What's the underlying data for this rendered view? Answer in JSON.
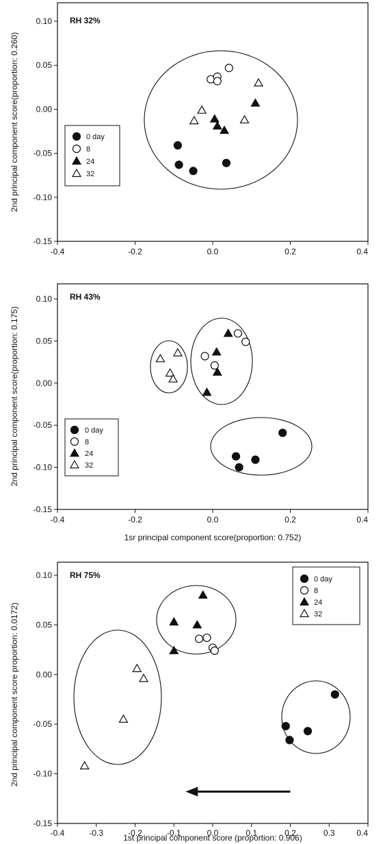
{
  "chart_data": [
    {
      "type": "scatter",
      "title": "RH 32%",
      "xlabel": "",
      "ylabel": "2nd principal component score(proportion: 0.260)",
      "xlim": [
        -0.4,
        0.4
      ],
      "ylim": [
        -0.15,
        0.1
      ],
      "x_ticks": [
        "-0.4",
        "-0.2",
        "0.0",
        "0.2",
        "0.4"
      ],
      "y_ticks": [
        "0.10",
        "0.05",
        "0.00",
        "-0.05",
        "-0.10",
        "-0.15"
      ],
      "legend_position": "left",
      "legend": [
        "0 day",
        "8",
        "24",
        "32"
      ],
      "series": [
        {
          "name": "0 day",
          "marker": "filled-circle",
          "points": [
            [
              -0.09,
              -0.041
            ],
            [
              -0.087,
              -0.063
            ],
            [
              -0.05,
              -0.07
            ],
            [
              0.035,
              -0.061
            ]
          ]
        },
        {
          "name": "8",
          "marker": "open-circle",
          "points": [
            [
              -0.005,
              0.034
            ],
            [
              0.012,
              0.037
            ],
            [
              0.012,
              0.032
            ],
            [
              0.042,
              0.047
            ]
          ]
        },
        {
          "name": "24",
          "marker": "filled-triangle",
          "points": [
            [
              0.005,
              -0.011
            ],
            [
              0.012,
              -0.019
            ],
            [
              0.03,
              -0.024
            ],
            [
              0.11,
              0.007
            ]
          ]
        },
        {
          "name": "32",
          "marker": "open-triangle",
          "points": [
            [
              -0.048,
              -0.013
            ],
            [
              -0.028,
              -0.001
            ],
            [
              0.082,
              -0.012
            ],
            [
              0.118,
              0.03
            ]
          ]
        }
      ]
    },
    {
      "type": "scatter",
      "title": "RH 43%",
      "xlabel": "1sr principal component score(proportion: 0.752)",
      "ylabel": "2nd principal component score(proportion: 0.175)",
      "xlim": [
        -0.4,
        0.4
      ],
      "ylim": [
        -0.15,
        0.1
      ],
      "x_ticks": [
        "-0.4",
        "-0.2",
        "0.0",
        "0.2",
        "0.4"
      ],
      "y_ticks": [
        "0.10",
        "0.05",
        "0.00",
        "-0.05",
        "-0.10",
        "-0.15"
      ],
      "legend_position": "bottom-left",
      "legend": [
        "0 day",
        "8",
        "24",
        "32"
      ],
      "series": [
        {
          "name": "0 day",
          "marker": "filled-circle",
          "points": [
            [
              0.06,
              -0.087
            ],
            [
              0.068,
              -0.1
            ],
            [
              0.11,
              -0.091
            ],
            [
              0.18,
              -0.059
            ]
          ]
        },
        {
          "name": "8",
          "marker": "open-circle",
          "points": [
            [
              -0.02,
              0.032
            ],
            [
              0.005,
              0.021
            ],
            [
              0.065,
              0.059
            ],
            [
              0.085,
              0.049
            ]
          ]
        },
        {
          "name": "24",
          "marker": "filled-triangle",
          "points": [
            [
              -0.015,
              -0.011
            ],
            [
              0.01,
              0.037
            ],
            [
              0.012,
              0.013
            ],
            [
              0.04,
              0.059
            ]
          ]
        },
        {
          "name": "32",
          "marker": "open-triangle",
          "points": [
            [
              -0.135,
              0.029
            ],
            [
              -0.11,
              0.012
            ],
            [
              -0.102,
              0.005
            ],
            [
              -0.09,
              0.036
            ]
          ]
        }
      ]
    },
    {
      "type": "scatter",
      "title": "RH 75%",
      "xlabel": "1st principal component score (proportion: 0.906)",
      "ylabel": "2nd principal component score proportion: 0.0172)",
      "xlim": [
        -0.4,
        0.4
      ],
      "ylim": [
        -0.15,
        0.1
      ],
      "x_ticks": [
        "-0.4",
        "-0.3",
        "-0.2",
        "-0.1",
        "0.0",
        "0.1",
        "0.2",
        "0.3",
        "0.4"
      ],
      "y_ticks": [
        "0.10",
        "0.05",
        "0.00",
        "-0.05",
        "-0.10",
        "-0.15"
      ],
      "legend_position": "top-right",
      "legend": [
        "0 day",
        "8",
        "24",
        "32"
      ],
      "series": [
        {
          "name": "0 day",
          "marker": "filled-circle",
          "points": [
            [
              0.188,
              -0.052
            ],
            [
              0.198,
              -0.066
            ],
            [
              0.245,
              -0.057
            ],
            [
              0.315,
              -0.02
            ]
          ]
        },
        {
          "name": "8",
          "marker": "open-circle",
          "points": [
            [
              -0.035,
              0.036
            ],
            [
              -0.015,
              0.037
            ],
            [
              0.0,
              0.027
            ],
            [
              0.005,
              0.024
            ]
          ]
        },
        {
          "name": "24",
          "marker": "filled-triangle",
          "points": [
            [
              -0.1,
              0.053
            ],
            [
              -0.1,
              0.024
            ],
            [
              -0.04,
              0.05
            ],
            [
              -0.025,
              0.08
            ]
          ]
        },
        {
          "name": "32",
          "marker": "open-triangle",
          "points": [
            [
              -0.33,
              -0.092
            ],
            [
              -0.23,
              -0.045
            ],
            [
              -0.195,
              0.006
            ],
            [
              -0.178,
              -0.004
            ]
          ]
        }
      ],
      "arrow": {
        "from": [
          0.2,
          -0.118
        ],
        "to": [
          -0.07,
          -0.118
        ]
      }
    }
  ]
}
